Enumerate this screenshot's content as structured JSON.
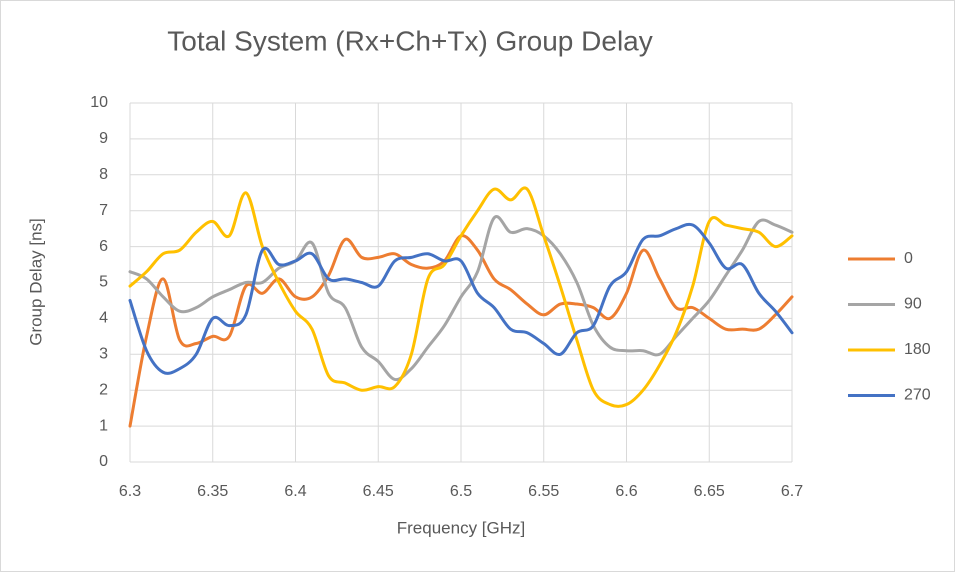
{
  "chart_data": {
    "type": "line",
    "title": "Total System (Rx+Ch+Tx) Group Delay",
    "x_label": "Frequency [GHz]",
    "y_label": "Group Delay [ns]",
    "x": [
      6.3,
      6.31,
      6.32,
      6.33,
      6.34,
      6.35,
      6.36,
      6.37,
      6.38,
      6.39,
      6.4,
      6.41,
      6.42,
      6.43,
      6.44,
      6.45,
      6.46,
      6.47,
      6.48,
      6.49,
      6.5,
      6.51,
      6.52,
      6.53,
      6.54,
      6.55,
      6.56,
      6.57,
      6.58,
      6.59,
      6.6,
      6.61,
      6.62,
      6.63,
      6.64,
      6.65,
      6.66,
      6.67,
      6.68,
      6.69,
      6.7
    ],
    "series": [
      {
        "name": "0",
        "color": "#ED7D31",
        "values": [
          1.0,
          3.5,
          5.1,
          3.4,
          3.3,
          3.5,
          3.5,
          4.9,
          4.7,
          5.1,
          4.6,
          4.6,
          5.2,
          6.2,
          5.7,
          5.7,
          5.8,
          5.5,
          5.4,
          5.6,
          6.3,
          5.9,
          5.1,
          4.8,
          4.4,
          4.1,
          4.4,
          4.4,
          4.3,
          4.0,
          4.7,
          5.9,
          5.1,
          4.3,
          4.3,
          4.0,
          3.7,
          3.7,
          3.7,
          4.1,
          4.6
        ]
      },
      {
        "name": "90",
        "color": "#A5A5A5",
        "values": [
          5.3,
          5.1,
          4.6,
          4.2,
          4.3,
          4.6,
          4.8,
          5.0,
          5.0,
          5.4,
          5.6,
          6.1,
          4.7,
          4.3,
          3.2,
          2.8,
          2.3,
          2.6,
          3.2,
          3.8,
          4.6,
          5.3,
          6.8,
          6.4,
          6.5,
          6.3,
          5.8,
          5.0,
          3.8,
          3.2,
          3.1,
          3.1,
          3.0,
          3.5,
          4.0,
          4.5,
          5.2,
          5.9,
          6.7,
          6.6,
          6.4
        ]
      },
      {
        "name": "180",
        "color": "#FFC000",
        "values": [
          4.9,
          5.3,
          5.8,
          5.9,
          6.4,
          6.7,
          6.3,
          7.5,
          6.0,
          5.0,
          4.2,
          3.7,
          2.4,
          2.2,
          2.0,
          2.1,
          2.1,
          3.0,
          5.1,
          5.5,
          6.3,
          7.0,
          7.6,
          7.3,
          7.6,
          6.3,
          4.9,
          3.4,
          2.0,
          1.6,
          1.6,
          2.0,
          2.7,
          3.6,
          4.9,
          6.7,
          6.6,
          6.5,
          6.4,
          6.0,
          6.3
        ]
      },
      {
        "name": "270",
        "color": "#4472C4",
        "values": [
          4.5,
          3.1,
          2.5,
          2.6,
          3.0,
          4.0,
          3.8,
          4.1,
          5.9,
          5.5,
          5.6,
          5.8,
          5.1,
          5.1,
          5.0,
          4.9,
          5.6,
          5.7,
          5.8,
          5.6,
          5.6,
          4.7,
          4.3,
          3.7,
          3.6,
          3.3,
          3.0,
          3.6,
          3.8,
          4.9,
          5.3,
          6.2,
          6.3,
          6.5,
          6.6,
          6.1,
          5.4,
          5.5,
          4.7,
          4.2,
          3.6
        ]
      }
    ],
    "xlim": [
      6.3,
      6.7
    ],
    "xticks": [
      6.3,
      6.35,
      6.4,
      6.45,
      6.5,
      6.55,
      6.6,
      6.65,
      6.7
    ],
    "ylim": [
      0,
      10
    ],
    "yticks": [
      0,
      1,
      2,
      3,
      4,
      5,
      6,
      7,
      8,
      9,
      10
    ],
    "grid": true,
    "legend": "right"
  }
}
